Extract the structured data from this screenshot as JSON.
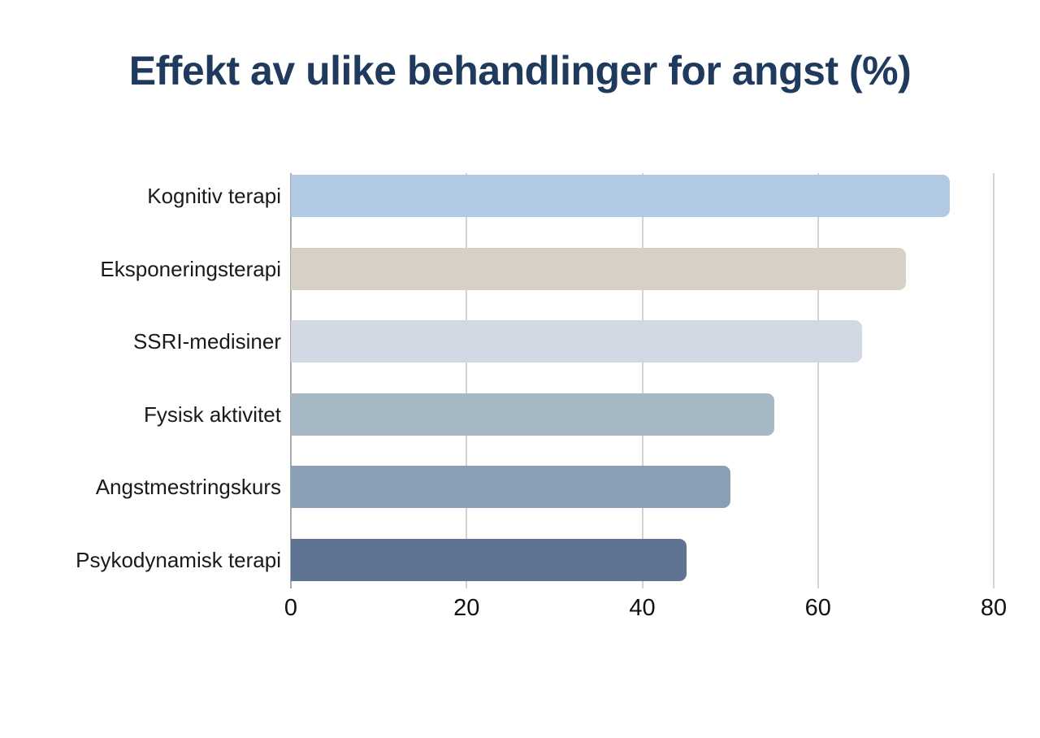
{
  "chart_data": {
    "type": "bar",
    "orientation": "horizontal",
    "title": "Effekt av ulike behandlinger for angst (%)",
    "categories": [
      "Kognitiv terapi",
      "Eksponeringsterapi",
      "SSRI-medisiner",
      "Fysisk aktivitet",
      "Angstmestringskurs",
      "Psykodynamisk terapi"
    ],
    "values": [
      75,
      70,
      65,
      55,
      50,
      45
    ],
    "bar_colors": [
      "#b1c9e3",
      "#d6d0c5",
      "#d3d9e4",
      "#a5b8c4",
      "#8b9fb4",
      "#5e7492"
    ],
    "xticks": [
      "0",
      "20",
      "40",
      "60",
      "80"
    ],
    "xtick_values": [
      0,
      20,
      40,
      60,
      80
    ],
    "xlim": [
      0,
      80
    ],
    "xlabel": "",
    "ylabel": "",
    "grid": true,
    "legend": false,
    "colors": {
      "title_text": "#1f3a5c",
      "grid_line": "#d2d2d2",
      "zero_line": "#a9a9a9",
      "category_text": "#1a1a1a",
      "tick_text": "#111111",
      "background": "#ffffff"
    }
  }
}
